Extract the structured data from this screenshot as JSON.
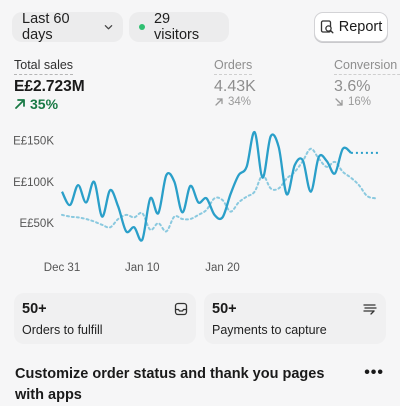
{
  "toolbar": {
    "date_range": "Last 60 days",
    "visitors": "29 visitors",
    "report_label": "Report"
  },
  "metrics": [
    {
      "label": "Total sales",
      "value": "E£2.723M",
      "change": "35%",
      "direction": "up"
    },
    {
      "label": "Orders",
      "value": "4.43K",
      "change": "34%",
      "direction": "up"
    },
    {
      "label": "Conversion r",
      "value": "3.6%",
      "change": "16%",
      "direction": "down"
    }
  ],
  "chart_data": {
    "type": "line",
    "y_ticks": [
      "E£150K",
      "E£100K",
      "E£50K"
    ],
    "y_tick_values": [
      150000,
      100000,
      50000
    ],
    "ylim": [
      20000,
      165000
    ],
    "x_ticks": [
      "Dec 31",
      "Jan 10",
      "Jan 20"
    ],
    "x_tick_index": [
      0,
      10,
      20
    ],
    "series": [
      {
        "style": "solid",
        "color": "#2a9fc9",
        "values": [
          88000,
          72000,
          96000,
          75000,
          100000,
          58000,
          90000,
          70000,
          40000,
          45000,
          30000,
          80000,
          62000,
          108000,
          100000,
          63000,
          95000,
          75000,
          80000,
          60000,
          57000,
          85000,
          108000,
          118000,
          160000,
          105000,
          155000,
          142000,
          85000,
          120000,
          126000,
          88000,
          130000,
          125000,
          110000,
          140000,
          135000
        ]
      },
      {
        "style": "dotted",
        "color": "#8ac9df",
        "values": [
          60000,
          58000,
          57000,
          55000,
          52000,
          48000,
          45000,
          55000,
          60000,
          57000,
          62000,
          42000,
          50000,
          40000,
          58000,
          55000,
          55000,
          60000,
          66000,
          80000,
          78000,
          64000,
          75000,
          82000,
          88000,
          108000,
          92000,
          92000,
          104000,
          112000,
          125000,
          140000,
          128000,
          118000,
          124000,
          112000,
          105000,
          96000,
          83000,
          80000
        ]
      }
    ]
  },
  "cards": [
    {
      "number": "50+",
      "text": "Orders to fulfill",
      "icon": "inbox-icon"
    },
    {
      "number": "50+",
      "text": "Payments to capture",
      "icon": "cash-icon"
    }
  ],
  "promo": {
    "title": "Customize order status and thank you pages with apps",
    "more": "•••"
  }
}
